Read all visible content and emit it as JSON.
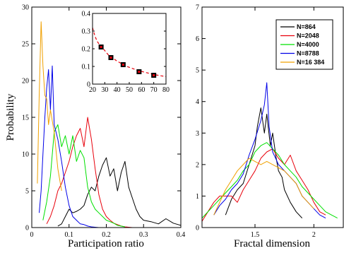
{
  "chart_data": [
    {
      "type": "line",
      "panel": "left",
      "title": "",
      "xlabel": "Participation ratio",
      "ylabel": "Probability",
      "xlim": [
        0,
        0.4
      ],
      "ylim": [
        0,
        30
      ],
      "xticks": [
        0,
        0.1,
        0.2,
        0.3,
        0.4
      ],
      "xtick_labels": [
        "0",
        "0.1",
        "0.2",
        "0.3",
        "0.4"
      ],
      "yticks": [
        0,
        5,
        10,
        15,
        20,
        25,
        30
      ],
      "ytick_labels": [
        "0",
        "5",
        "10",
        "15",
        "20",
        "25",
        "30"
      ],
      "grid": false,
      "series": [
        {
          "label": "N=864",
          "color": "#000000",
          "x": [
            0.07,
            0.08,
            0.09,
            0.1,
            0.11,
            0.12,
            0.13,
            0.14,
            0.15,
            0.16,
            0.17,
            0.18,
            0.19,
            0.2,
            0.21,
            0.22,
            0.23,
            0.24,
            0.25,
            0.26,
            0.27,
            0.28,
            0.29,
            0.3,
            0.32,
            0.34,
            0.36,
            0.38,
            0.4
          ],
          "y": [
            0.2,
            0.5,
            1.5,
            2.5,
            2.0,
            2.2,
            2.5,
            3.0,
            4.5,
            5.5,
            5.0,
            7.0,
            8.5,
            9.5,
            7.0,
            8.0,
            5.0,
            7.5,
            9.0,
            5.5,
            4.0,
            2.5,
            1.5,
            1.0,
            0.8,
            0.5,
            1.2,
            0.6,
            0.3
          ]
        },
        {
          "label": "N=2048",
          "color": "#e8000b",
          "x": [
            0.04,
            0.05,
            0.06,
            0.07,
            0.08,
            0.09,
            0.1,
            0.11,
            0.12,
            0.13,
            0.14,
            0.15,
            0.16,
            0.17,
            0.18,
            0.19,
            0.2,
            0.21,
            0.22,
            0.23,
            0.24,
            0.25,
            0.27,
            0.3
          ],
          "y": [
            0.5,
            1.5,
            3.0,
            5.0,
            6.0,
            7.5,
            9.0,
            11.0,
            12.5,
            13.5,
            11.0,
            15.0,
            12.0,
            8.0,
            4.5,
            2.5,
            1.5,
            1.0,
            0.6,
            0.4,
            0.2,
            0.1,
            0.0,
            0.0
          ]
        },
        {
          "label": "N=4000",
          "color": "#00e000",
          "x": [
            0.03,
            0.04,
            0.05,
            0.06,
            0.07,
            0.08,
            0.09,
            0.1,
            0.11,
            0.12,
            0.13,
            0.14,
            0.15,
            0.16,
            0.17,
            0.18,
            0.19,
            0.2,
            0.21,
            0.22,
            0.23,
            0.25
          ],
          "y": [
            1.0,
            3.5,
            7.0,
            13.0,
            14.0,
            11.0,
            12.5,
            10.0,
            12.5,
            9.0,
            10.5,
            9.5,
            5.5,
            3.5,
            2.5,
            2.0,
            1.5,
            1.0,
            0.8,
            0.6,
            0.3,
            0.1
          ]
        },
        {
          "label": "N=8788",
          "color": "#0000e8",
          "x": [
            0.02,
            0.025,
            0.03,
            0.035,
            0.04,
            0.045,
            0.05,
            0.055,
            0.06,
            0.07,
            0.08,
            0.09,
            0.1,
            0.11,
            0.12,
            0.13,
            0.14,
            0.15,
            0.16,
            0.18
          ],
          "y": [
            2.0,
            5.0,
            10.0,
            15.0,
            19.0,
            21.5,
            16.0,
            22.0,
            14.0,
            12.0,
            9.0,
            5.5,
            3.0,
            1.5,
            1.0,
            0.5,
            0.4,
            0.2,
            0.1,
            0.0
          ]
        },
        {
          "label": "N=16 384",
          "color": "#f0a000",
          "x": [
            0.015,
            0.02,
            0.025,
            0.03,
            0.035,
            0.04,
            0.045,
            0.05,
            0.06,
            0.07,
            0.08
          ],
          "y": [
            6.0,
            18.0,
            28.0,
            22.0,
            18.0,
            17.5,
            14.0,
            16.0,
            13.0,
            8.0,
            5.0
          ]
        }
      ],
      "inset": {
        "type": "scatter",
        "xlim": [
          20,
          80
        ],
        "ylim": [
          0,
          0.4
        ],
        "xticks": [
          20,
          30,
          40,
          50,
          60,
          70,
          80
        ],
        "xtick_labels": [
          "20",
          "30",
          "40",
          "50",
          "60",
          "70",
          "80"
        ],
        "yticks": [
          0,
          0.1,
          0.2,
          0.3,
          0.4
        ],
        "ytick_labels": [
          "0",
          "0.1",
          "0.2",
          "0.3",
          "0.4"
        ],
        "points": {
          "x": [
            27,
            35,
            45,
            58,
            70
          ],
          "y": [
            0.21,
            0.15,
            0.11,
            0.07,
            0.05
          ],
          "color": "#000000"
        },
        "fit": {
          "x": [
            20,
            22,
            24,
            26,
            28,
            30,
            33,
            36,
            40,
            44,
            48,
            52,
            56,
            60,
            64,
            68,
            72,
            76,
            80
          ],
          "y": [
            0.32,
            0.27,
            0.24,
            0.22,
            0.205,
            0.19,
            0.165,
            0.15,
            0.13,
            0.115,
            0.1,
            0.09,
            0.08,
            0.072,
            0.065,
            0.058,
            0.052,
            0.047,
            0.043
          ],
          "color": "#e8000b"
        }
      }
    },
    {
      "type": "line",
      "panel": "right",
      "title": "",
      "xlabel": "Fractal dimension",
      "ylabel": "",
      "xlim": [
        1.05,
        2.25
      ],
      "ylim": [
        0,
        7
      ],
      "xticks": [
        1.5,
        2.0
      ],
      "xtick_labels": [
        "1.5",
        "2"
      ],
      "yticks": [
        0,
        1,
        2,
        3,
        4,
        5,
        6,
        7
      ],
      "ytick_labels": [
        "0",
        "1",
        "2",
        "3",
        "4",
        "5",
        "6",
        "7"
      ],
      "grid": false,
      "legend_position": "top-right",
      "legend": [
        "N=864",
        "N=2048",
        "N=4000",
        "N=8788",
        "N=16 384"
      ],
      "series": [
        {
          "label": "N=864",
          "color": "#000000",
          "x": [
            1.25,
            1.3,
            1.35,
            1.4,
            1.45,
            1.5,
            1.52,
            1.55,
            1.58,
            1.6,
            1.63,
            1.65,
            1.68,
            1.7,
            1.73,
            1.75,
            1.8,
            1.85,
            1.9
          ],
          "y": [
            0.4,
            0.9,
            1.2,
            1.4,
            2.0,
            2.6,
            3.2,
            3.8,
            3.0,
            3.6,
            2.6,
            3.0,
            2.2,
            1.8,
            1.6,
            1.2,
            0.8,
            0.5,
            0.3
          ]
        },
        {
          "label": "N=2048",
          "color": "#e8000b",
          "x": [
            1.05,
            1.1,
            1.15,
            1.2,
            1.25,
            1.3,
            1.35,
            1.4,
            1.45,
            1.5,
            1.55,
            1.6,
            1.65,
            1.7,
            1.75,
            1.8,
            1.85,
            1.9,
            1.95,
            2.0,
            2.05,
            2.1
          ],
          "y": [
            0.2,
            0.5,
            0.8,
            1.0,
            1.0,
            1.0,
            0.8,
            1.2,
            1.5,
            1.8,
            2.2,
            2.4,
            2.5,
            2.2,
            2.0,
            2.3,
            1.8,
            1.5,
            1.2,
            0.8,
            0.5,
            0.4
          ]
        },
        {
          "label": "N=4000",
          "color": "#00e000",
          "x": [
            1.05,
            1.1,
            1.15,
            1.2,
            1.25,
            1.3,
            1.35,
            1.4,
            1.45,
            1.5,
            1.55,
            1.6,
            1.65,
            1.7,
            1.75,
            1.8,
            1.85,
            1.9,
            1.95,
            2.0,
            2.05,
            2.1,
            2.15,
            2.2
          ],
          "y": [
            0.3,
            0.5,
            0.7,
            0.9,
            1.1,
            1.3,
            1.5,
            1.8,
            2.0,
            2.4,
            2.6,
            2.7,
            2.5,
            2.3,
            2.0,
            1.8,
            1.6,
            1.3,
            1.1,
            0.9,
            0.7,
            0.5,
            0.4,
            0.3
          ]
        },
        {
          "label": "N=8788",
          "color": "#0000e8",
          "x": [
            1.15,
            1.2,
            1.25,
            1.3,
            1.35,
            1.4,
            1.45,
            1.5,
            1.55,
            1.58,
            1.6,
            1.62,
            1.65,
            1.7,
            1.75,
            1.8,
            1.85,
            1.9,
            1.95,
            2.0,
            2.05,
            2.1
          ],
          "y": [
            0.4,
            0.7,
            0.9,
            1.2,
            1.4,
            1.7,
            2.3,
            2.8,
            3.4,
            3.9,
            4.6,
            3.2,
            2.4,
            2.0,
            1.8,
            1.6,
            1.4,
            1.0,
            0.8,
            0.6,
            0.4,
            0.3
          ]
        },
        {
          "label": "N=16 384",
          "color": "#f0a000",
          "x": [
            1.15,
            1.2,
            1.25,
            1.3,
            1.35,
            1.4,
            1.45,
            1.5,
            1.55,
            1.6,
            1.65,
            1.7,
            1.75,
            1.8,
            1.85,
            1.9,
            1.95,
            2.0
          ],
          "y": [
            0.4,
            0.8,
            1.2,
            1.5,
            1.8,
            2.0,
            2.2,
            2.1,
            2.0,
            2.1,
            2.0,
            1.9,
            1.8,
            1.6,
            1.4,
            1.0,
            0.8,
            0.6
          ]
        }
      ]
    }
  ]
}
